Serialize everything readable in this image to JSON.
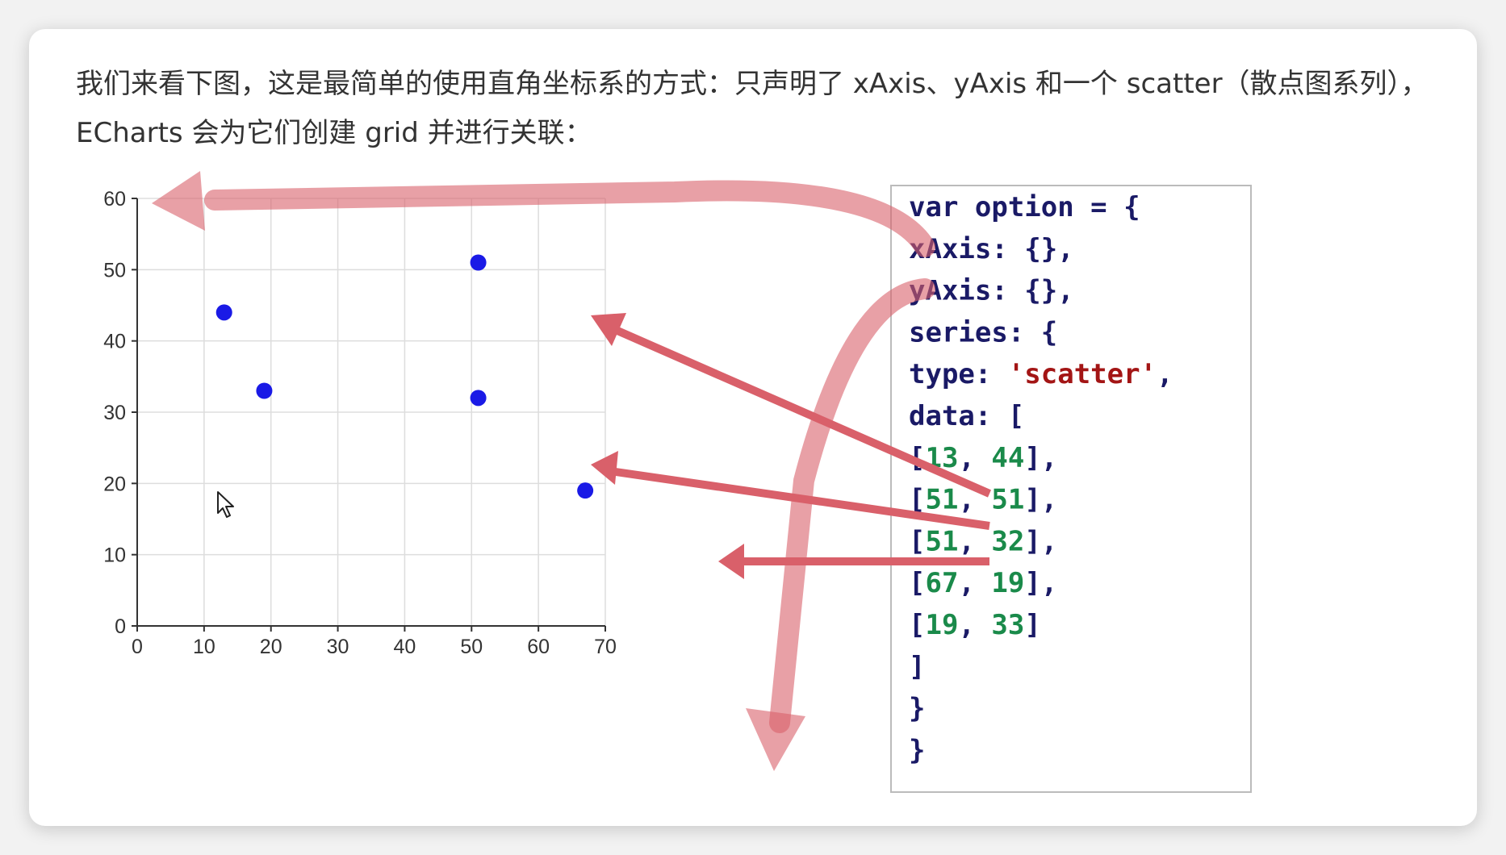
{
  "article": {
    "intro_text": "我们来看下图，这是最简单的使用直角坐标系的方式：只声明了 xAxis、yAxis 和一个 scatter（散点图系列），ECharts 会为它们创建 grid 并进行关联："
  },
  "chart_data": {
    "type": "scatter",
    "xlim": [
      0,
      70
    ],
    "ylim": [
      0,
      60
    ],
    "x_ticks": [
      0,
      10,
      20,
      30,
      40,
      50,
      60,
      70
    ],
    "y_ticks": [
      0,
      10,
      20,
      30,
      40,
      50,
      60
    ],
    "grid": true,
    "point_color": "#1a1ae6",
    "points": [
      [
        13,
        44
      ],
      [
        51,
        51
      ],
      [
        51,
        32
      ],
      [
        67,
        19
      ],
      [
        19,
        33
      ]
    ]
  },
  "code": {
    "lines": [
      [
        {
          "t": "var option = {",
          "c": "kw"
        }
      ],
      [
        {
          "t": "  xAxis: {},",
          "c": "kw"
        }
      ],
      [
        {
          "t": "  yAxis: {},",
          "c": "kw"
        }
      ],
      [
        {
          "t": "  series: {",
          "c": "kw"
        }
      ],
      [
        {
          "t": "    type: ",
          "c": "kw"
        },
        {
          "t": "'scatter'",
          "c": "str"
        },
        {
          "t": ",",
          "c": "kw"
        }
      ],
      [
        {
          "t": "    data: [",
          "c": "kw"
        }
      ],
      [
        {
          "t": "      [",
          "c": "kw"
        },
        {
          "t": "13",
          "c": "num"
        },
        {
          "t": ", ",
          "c": "kw"
        },
        {
          "t": "44",
          "c": "num"
        },
        {
          "t": "],",
          "c": "kw"
        }
      ],
      [
        {
          "t": "      [",
          "c": "kw"
        },
        {
          "t": "51",
          "c": "num"
        },
        {
          "t": ", ",
          "c": "kw"
        },
        {
          "t": "51",
          "c": "num"
        },
        {
          "t": "],",
          "c": "kw"
        }
      ],
      [
        {
          "t": "      [",
          "c": "kw"
        },
        {
          "t": "51",
          "c": "num"
        },
        {
          "t": ", ",
          "c": "kw"
        },
        {
          "t": "32",
          "c": "num"
        },
        {
          "t": "],",
          "c": "kw"
        }
      ],
      [
        {
          "t": "      [",
          "c": "kw"
        },
        {
          "t": "67",
          "c": "num"
        },
        {
          "t": ", ",
          "c": "kw"
        },
        {
          "t": "19",
          "c": "num"
        },
        {
          "t": "],",
          "c": "kw"
        }
      ],
      [
        {
          "t": "      [",
          "c": "kw"
        },
        {
          "t": "19",
          "c": "num"
        },
        {
          "t": ", ",
          "c": "kw"
        },
        {
          "t": "33",
          "c": "num"
        },
        {
          "t": "]",
          "c": "kw"
        }
      ],
      [
        {
          "t": "    ]",
          "c": "kw"
        }
      ],
      [
        {
          "t": "  }",
          "c": "kw"
        }
      ],
      [
        {
          "t": "}",
          "c": "kw"
        }
      ]
    ],
    "colors": {
      "kw": "#1a1a66",
      "str": "#a31515",
      "num": "#1a8a4a"
    }
  },
  "annotations": {
    "arrow_color": "#d9606a"
  },
  "icons": {
    "cursor": "mouse-pointer-icon"
  }
}
